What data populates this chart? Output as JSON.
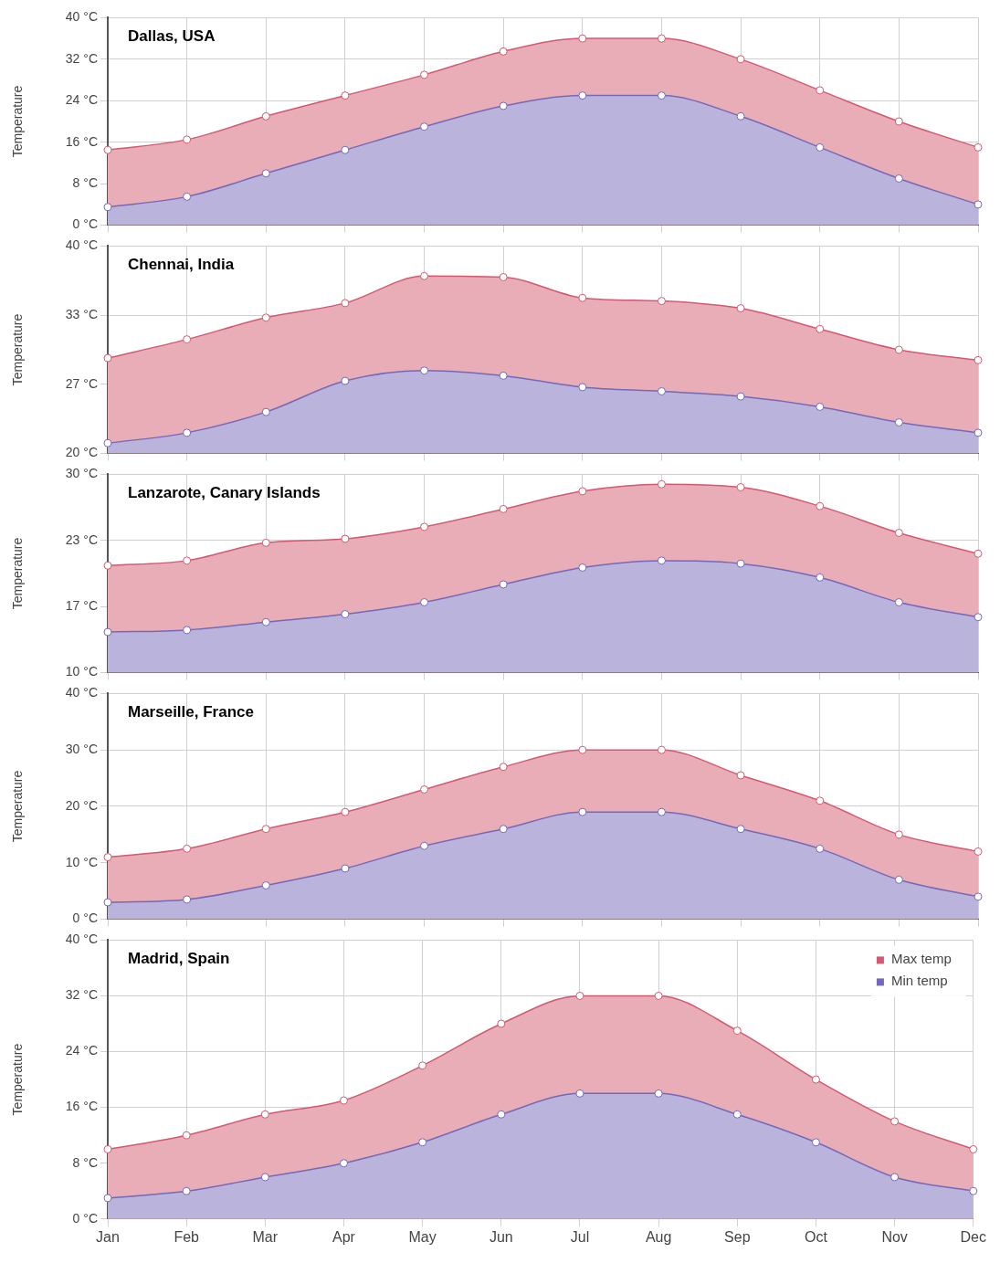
{
  "chart_data": [
    {
      "type": "area",
      "title": "Dallas, USA",
      "ylabel": "Temperature",
      "categories": [
        null,
        null,
        null,
        null,
        null,
        null,
        null,
        null,
        null,
        null,
        null,
        null
      ],
      "ylim": [
        0,
        40
      ],
      "yticks": [
        {
          "value": 0,
          "label": "0 °C"
        },
        {
          "value": 8,
          "label": "8 °C"
        },
        {
          "value": 16,
          "label": "16 °C"
        },
        {
          "value": 24,
          "label": "24 °C"
        },
        {
          "value": 32,
          "label": "32 °C"
        },
        {
          "value": 40,
          "label": "40 °C"
        }
      ],
      "grid": true,
      "marker": "circle",
      "tick_labels": "y",
      "series": [
        {
          "color": "#d25a70",
          "values": [
            14.5,
            16.5,
            21,
            25,
            29,
            33.5,
            36,
            36,
            32,
            26,
            20,
            15
          ]
        },
        {
          "color": "#7468b8",
          "values": [
            3.5,
            5.5,
            10,
            14.5,
            19,
            23,
            25,
            25,
            21,
            15,
            9,
            4
          ]
        }
      ]
    },
    {
      "type": "area",
      "title": "Chennai, India",
      "ylabel": "Temperature",
      "categories": [
        null,
        null,
        null,
        null,
        null,
        null,
        null,
        null,
        null,
        null,
        null,
        null
      ],
      "ylim": [
        20,
        40
      ],
      "yticks": [
        {
          "value": 20,
          "label": "20 °C"
        },
        {
          "value": 26.67,
          "label": "27 °C"
        },
        {
          "value": 33.33,
          "label": "33 °C"
        },
        {
          "value": 40,
          "label": "40 °C"
        }
      ],
      "grid": true,
      "marker": "circle",
      "tick_labels": "y",
      "series": [
        {
          "color": "#d25a70",
          "values": [
            29.2,
            31,
            33.1,
            34.5,
            37.1,
            37,
            35,
            34.7,
            34,
            32,
            30,
            29
          ]
        },
        {
          "color": "#7468b8",
          "values": [
            21,
            22,
            24,
            27,
            28,
            27.5,
            26.4,
            26,
            25.5,
            24.5,
            23,
            22
          ]
        }
      ]
    },
    {
      "type": "area",
      "title": "Lanzarote, Canary Islands",
      "ylabel": "Temperature",
      "categories": [
        null,
        null,
        null,
        null,
        null,
        null,
        null,
        null,
        null,
        null,
        null,
        null
      ],
      "ylim": [
        10,
        30
      ],
      "yticks": [
        {
          "value": 10,
          "label": "10 °C"
        },
        {
          "value": 16.67,
          "label": "17 °C"
        },
        {
          "value": 23.33,
          "label": "23 °C"
        },
        {
          "value": 30,
          "label": "30 °C"
        }
      ],
      "grid": true,
      "marker": "circle",
      "tick_labels": "y",
      "series": [
        {
          "color": "#d25a70",
          "values": [
            20.8,
            21.3,
            23.1,
            23.5,
            24.7,
            26.5,
            28.3,
            29,
            28.7,
            26.8,
            24.1,
            22
          ]
        },
        {
          "color": "#7468b8",
          "values": [
            14.1,
            14.3,
            15.1,
            15.9,
            17.1,
            18.9,
            20.6,
            21.3,
            21,
            19.6,
            17.1,
            15.6
          ]
        }
      ]
    },
    {
      "type": "area",
      "title": "Marseille, France",
      "ylabel": "Temperature",
      "categories": [
        null,
        null,
        null,
        null,
        null,
        null,
        null,
        null,
        null,
        null,
        null,
        null
      ],
      "ylim": [
        0,
        40
      ],
      "yticks": [
        {
          "value": 0,
          "label": "0 °C"
        },
        {
          "value": 10,
          "label": "10 °C"
        },
        {
          "value": 20,
          "label": "20 °C"
        },
        {
          "value": 30,
          "label": "30 °C"
        },
        {
          "value": 40,
          "label": "40 °C"
        }
      ],
      "grid": true,
      "marker": "circle",
      "tick_labels": "y",
      "series": [
        {
          "color": "#d25a70",
          "values": [
            11,
            12.5,
            16,
            19,
            23,
            27,
            30,
            30,
            25.5,
            21,
            15,
            12
          ]
        },
        {
          "color": "#7468b8",
          "values": [
            3,
            3.5,
            6,
            9,
            13,
            16,
            19,
            19,
            16,
            12.5,
            7,
            4
          ]
        }
      ]
    },
    {
      "type": "area",
      "title": "Madrid, Spain",
      "ylabel": "Temperature",
      "categories": [
        "Jan",
        "Feb",
        "Mar",
        "Apr",
        "May",
        "Jun",
        "Jul",
        "Aug",
        "Sep",
        "Oct",
        "Nov",
        "Dec"
      ],
      "ylim": [
        0,
        40
      ],
      "yticks": [
        {
          "value": 0,
          "label": "0 °C"
        },
        {
          "value": 8,
          "label": "8 °C"
        },
        {
          "value": 16,
          "label": "16 °C"
        },
        {
          "value": 24,
          "label": "24 °C"
        },
        {
          "value": 32,
          "label": "32 °C"
        },
        {
          "value": 40,
          "label": "40 °C"
        }
      ],
      "grid": true,
      "marker": "circle",
      "legend": "top right",
      "series": [
        {
          "name": "Max temp",
          "color": "#d25a70",
          "values": [
            10,
            12,
            15,
            17,
            22,
            28,
            32,
            32,
            27,
            20,
            14,
            10
          ]
        },
        {
          "name": "Min temp",
          "color": "#7468b8",
          "values": [
            3,
            4,
            6,
            8,
            11,
            15,
            18,
            18,
            15,
            11,
            6,
            4
          ]
        }
      ]
    }
  ]
}
